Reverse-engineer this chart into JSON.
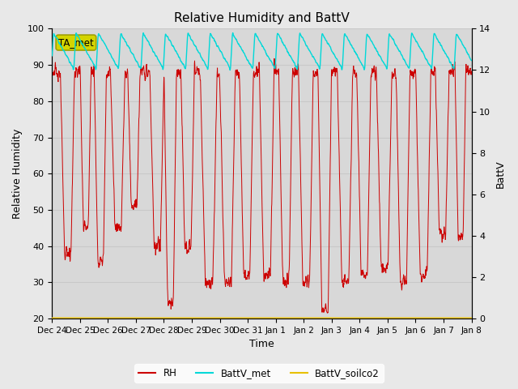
{
  "title": "Relative Humidity and BattV",
  "xlabel": "Time",
  "ylabel_left": "Relative Humidity",
  "ylabel_right": "BattV",
  "ylim_left": [
    20,
    100
  ],
  "ylim_right": [
    0,
    14
  ],
  "yticks_left": [
    20,
    30,
    40,
    50,
    60,
    70,
    80,
    90,
    100
  ],
  "yticks_right": [
    0,
    2,
    4,
    6,
    8,
    10,
    12,
    14
  ],
  "fig_bg_color": "#e8e8e8",
  "plot_bg_color": "#d8d8d8",
  "rh_color": "#cc0000",
  "battv_met_color": "#00d8d8",
  "battv_soilco2_color": "#e8c000",
  "annotation_text": "TA_met",
  "annotation_bg": "#d4d400",
  "annotation_edge": "#a0a000",
  "x_tick_labels": [
    "Dec 24",
    "Dec 25",
    "Dec 26",
    "Dec 27",
    "Dec 28",
    "Dec 29",
    "Dec 30",
    "Dec 31",
    "Jan 1",
    "Jan 2",
    "Jan 3",
    "Jan 4",
    "Jan 5",
    "Jan 6",
    "Jan 7",
    "Jan 8"
  ],
  "num_days": 15,
  "grid_color": "#c8c8c8"
}
